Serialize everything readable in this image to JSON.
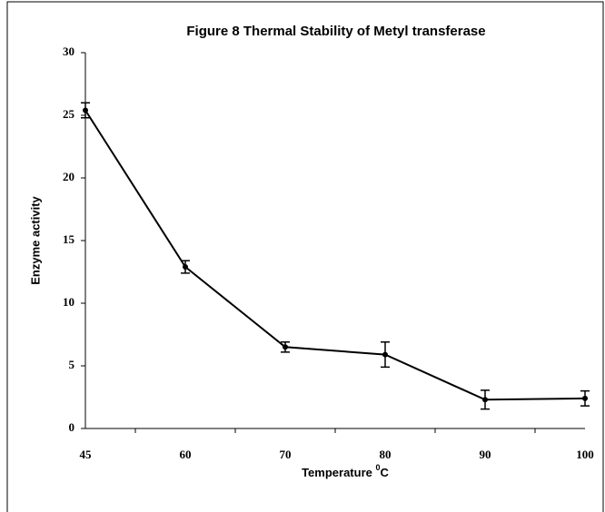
{
  "chart_data": {
    "type": "line",
    "title": "Figure 8 Thermal Stability of Metyl transferase",
    "y_label": "Enzyme activity",
    "x_label": {
      "text": "Temperature",
      "superscript": "0",
      "unit": "C"
    },
    "categories": [
      "45",
      "60",
      "70",
      "80",
      "90",
      "100"
    ],
    "series": [
      {
        "name": "Enzyme activity",
        "color": "#000000",
        "values": [
          25.4,
          12.9,
          6.5,
          5.9,
          2.3,
          2.4
        ],
        "errors": [
          0.6,
          0.5,
          0.4,
          1.0,
          0.75,
          0.6
        ]
      }
    ],
    "ylim": [
      0,
      30
    ],
    "yticks": [
      0,
      5,
      10,
      15,
      20,
      25,
      30
    ],
    "grid": false
  }
}
